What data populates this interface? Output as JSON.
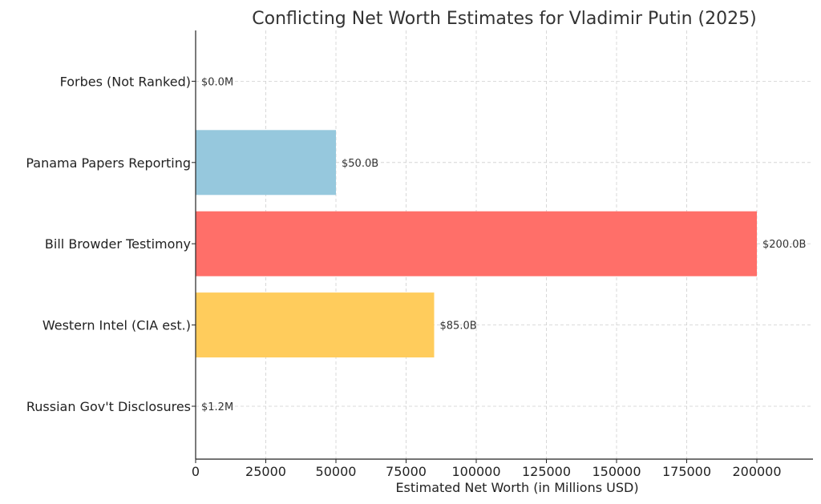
{
  "chart_data": {
    "type": "bar",
    "orientation": "horizontal",
    "title": "Conflicting Net Worth Estimates for Vladimir Putin (2025)",
    "xlabel": "Estimated Net Worth (in Millions USD)",
    "ylabel": "",
    "xlim": [
      0,
      220000
    ],
    "xticks": [
      0,
      25000,
      50000,
      75000,
      100000,
      125000,
      150000,
      175000,
      200000
    ],
    "categories": [
      "Russian Gov't Disclosures",
      "Western Intel (CIA est.)",
      "Bill Browder Testimony",
      "Panama Papers Reporting",
      "Forbes (Not Ranked)"
    ],
    "values": [
      1.2,
      85000,
      200000,
      50000,
      0
    ],
    "data_labels": [
      "$1.2M",
      "$85.0B",
      "$200.0B",
      "$50.0B",
      "$0.0M"
    ],
    "colors": [
      "#6a9ed4",
      "#ffcc5c",
      "#ff6f69",
      "#96c8dd",
      "#b0b0b0"
    ],
    "grid": true,
    "legend": "none"
  }
}
